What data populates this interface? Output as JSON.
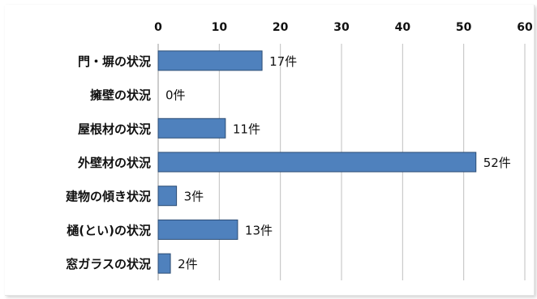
{
  "chart_data": {
    "type": "bar",
    "orientation": "horizontal",
    "categories": [
      "門・塀の状況",
      "擁壁の状況",
      "屋根材の状況",
      "外壁材の状況",
      "建物の傾き状況",
      "樋(とい)の状況",
      "窓ガラスの状況"
    ],
    "values": [
      17,
      0,
      11,
      52,
      3,
      13,
      2
    ],
    "data_labels": [
      "17件",
      "0件",
      "11件",
      "52件",
      "3件",
      "13件",
      "2件"
    ],
    "xlim": [
      0,
      60
    ],
    "ticks": [
      0,
      10,
      20,
      30,
      40,
      50,
      60
    ],
    "tick_labels": [
      "0",
      "10",
      "20",
      "30",
      "40",
      "50",
      "60"
    ],
    "x_axis_position": "top",
    "grid": true,
    "legend": "none",
    "bar_color": "#4f81bd",
    "bar_edge_color": "#2c4d75",
    "grid_color": "#bfbfbf"
  }
}
